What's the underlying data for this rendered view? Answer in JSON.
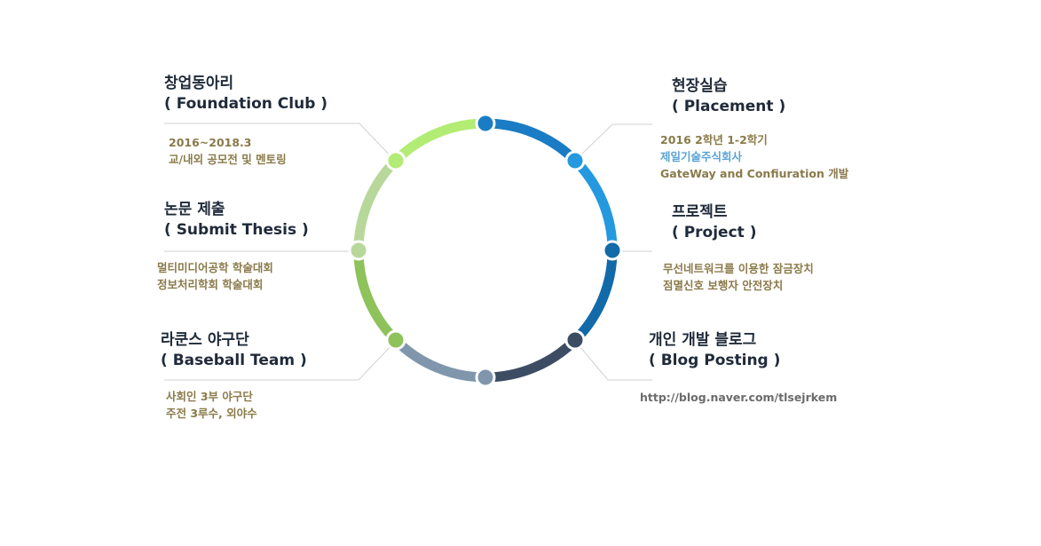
{
  "items": {
    "foundation": {
      "title_ko": "창업동아리",
      "title_en": "( Foundation Club )",
      "lines": [
        "2016~2018.3",
        "교/내외 공모전 및 멘토링"
      ]
    },
    "thesis": {
      "title_ko": "논문 제출",
      "title_en": "( Submit Thesis )",
      "lines": [
        "멀티미디어공학 학술대회",
        "정보처리학회 학술대회"
      ]
    },
    "baseball": {
      "title_ko": "라쿤스 야구단",
      "title_en": "( Baseball Team )",
      "lines": [
        "사회인 3부 야구단",
        "주전 3루수, 외야수"
      ]
    },
    "placement": {
      "title_ko": "현장실습",
      "title_en": "( Placement )",
      "lines": [
        "2016 2학년 1-2학기",
        "제일기술주식회사",
        "GateWay and Confiuration 개발"
      ]
    },
    "project": {
      "title_ko": "프로젝트",
      "title_en": "( Project )",
      "lines": [
        "무선네트워크를 이용한 잠금장치",
        "점멸신호 보행자 안전장치"
      ]
    },
    "blog": {
      "title_ko": "개인 개발 블로그",
      "title_en": "( Blog Posting )",
      "lines": [
        "http://blog.naver.com/tlsejrkem"
      ]
    }
  },
  "colors": {
    "arc_top_right": "#1a7cc4",
    "arc_right_upper": "#2499df",
    "arc_right_lower": "#136aa8",
    "arc_bottom_right": "#3c4c63",
    "arc_bottom_left": "#7f96ad",
    "arc_left_lower": "#8ec25a",
    "arc_left_upper": "#b7d89a",
    "arc_top_left": "#b3ec74",
    "title": "#1f2a3a",
    "desc": "#8a7a4a",
    "highlight": "#5aa3d6",
    "url": "#6b6b6b",
    "connector": "#d2d2d2"
  }
}
